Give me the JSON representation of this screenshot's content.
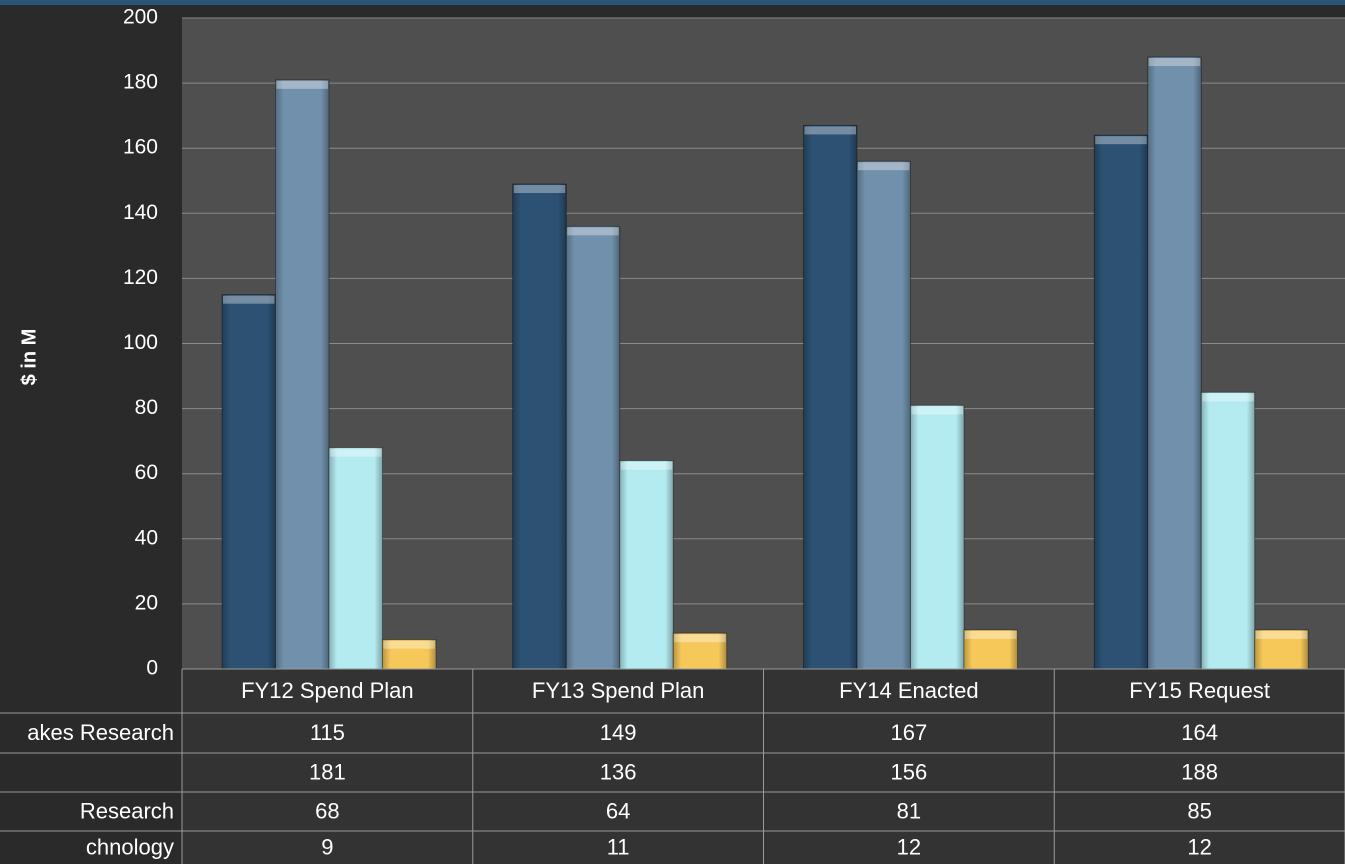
{
  "chart_data": {
    "type": "bar",
    "y_label": "$ in M",
    "categories": [
      "FY12 Spend Plan",
      "FY13 Spend Plan",
      "FY14 Enacted",
      "FY15 Request"
    ],
    "series": [
      {
        "name": "akes Research",
        "color": "#2c5173",
        "values": [
          115,
          149,
          167,
          164
        ]
      },
      {
        "name": null,
        "color": "#7190ab",
        "values": [
          181,
          136,
          156,
          188
        ]
      },
      {
        "name": "Research",
        "color": "#b3ebf1",
        "values": [
          68,
          64,
          81,
          85
        ]
      },
      {
        "name": "chnology",
        "color": "#f6c85a",
        "values": [
          9,
          11,
          12,
          12
        ]
      }
    ],
    "ylim": [
      0,
      200
    ],
    "yticks": [
      0,
      20,
      40,
      60,
      80,
      100,
      120,
      140,
      160,
      180,
      200
    ],
    "grid": true
  }
}
